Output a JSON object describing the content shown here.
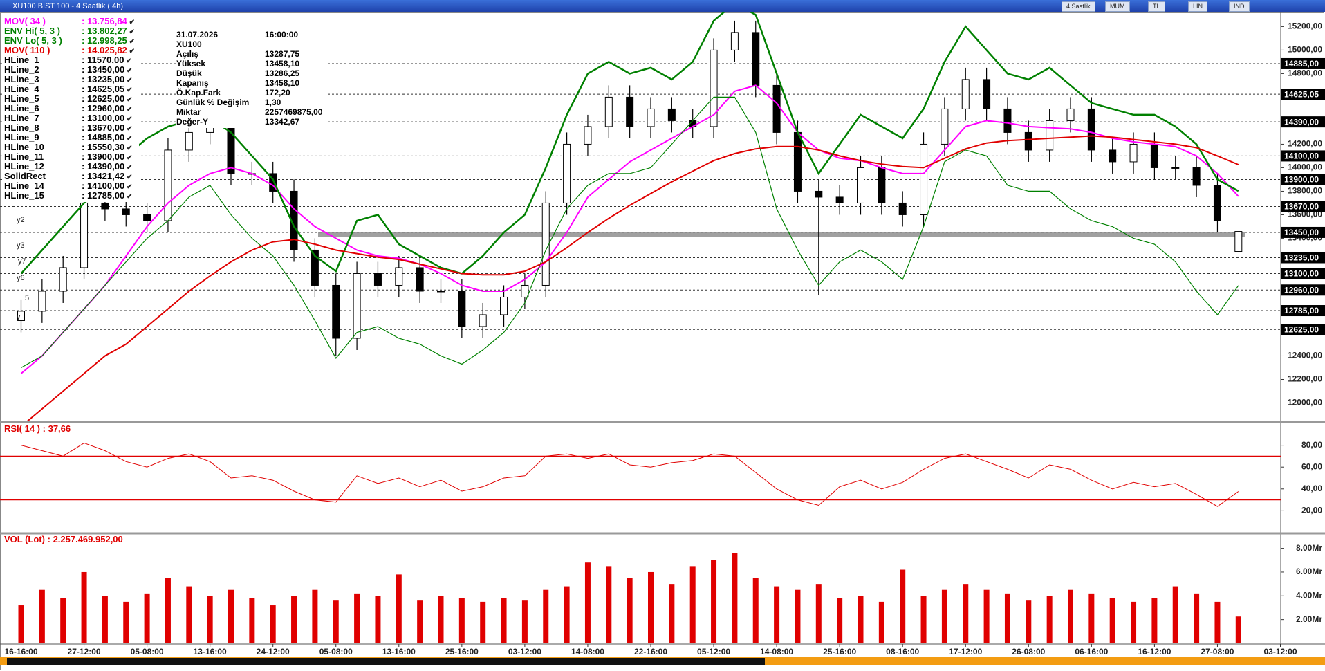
{
  "window_title": "XU100 BIST 100 - 4 Saatlik (.4h)",
  "toolbar": [
    "4 Saatlik",
    "MUM",
    "TL",
    "LIN",
    "IND"
  ],
  "info": {
    "date": "31.07.2026",
    "time": "16:00:00",
    "symbol": "XU100",
    "rows": [
      [
        "Açılış",
        "13287,75"
      ],
      [
        "Yüksek",
        "13458,10"
      ],
      [
        "Düşük",
        "13286,25"
      ],
      [
        "Kapanış",
        "13458,10"
      ],
      [
        "Ö.Kap.Fark",
        "172,20"
      ],
      [
        "Günlük % Değişim",
        "1,30"
      ],
      [
        "Miktar",
        "2257469875,00"
      ],
      [
        "Değer-Y",
        "13342,67"
      ]
    ]
  },
  "annotations": [
    "y2",
    "y3",
    "y7",
    "y6",
    "5",
    "y"
  ],
  "chart_data": [
    {
      "type": "candlestick",
      "categories": [
        "16-16:00",
        null,
        null,
        "27-12:00",
        null,
        null,
        "05-08:00",
        null,
        null,
        "13-16:00",
        null,
        null,
        "24-12:00",
        null,
        null,
        "05-08:00",
        null,
        null,
        "13-16:00",
        null,
        null,
        "25-16:00",
        null,
        null,
        "03-12:00",
        null,
        null,
        "14-08:00",
        null,
        null,
        "22-16:00",
        null,
        null,
        "05-12:00",
        null,
        null,
        "14-08:00",
        null,
        null,
        "25-16:00",
        null,
        null,
        "08-16:00",
        null,
        null,
        "17-12:00",
        null,
        null,
        "26-08:00",
        null,
        null,
        "06-16:00",
        null,
        null,
        "16-12:00",
        null,
        null,
        "27-08:00",
        null,
        null,
        "03-12:00"
      ],
      "open": [
        12700,
        12780,
        12950,
        13150,
        13700,
        13650,
        13600,
        13550,
        14150,
        14300,
        14350,
        13950,
        13950,
        13800,
        13300,
        13000,
        12550,
        13100,
        13000,
        13150,
        12950,
        12950,
        12650,
        12750,
        12900,
        13000,
        13700,
        14200,
        14350,
        14600,
        14350,
        14500,
        14400,
        14350,
        15000,
        15150,
        14700,
        14300,
        13800,
        13750,
        13700,
        14000,
        13700,
        13600,
        14200,
        14500,
        14750,
        14500,
        14300,
        14150,
        14400,
        14500,
        14150,
        14050,
        14200,
        14000,
        14000,
        13850,
        13287.75,
        null,
        null
      ],
      "high": [
        12880,
        13050,
        13250,
        13800,
        13800,
        13750,
        13700,
        14250,
        14400,
        14450,
        14450,
        14050,
        14050,
        13900,
        13400,
        13100,
        13200,
        13200,
        13250,
        13250,
        13050,
        13050,
        12850,
        13000,
        13100,
        13800,
        14300,
        14450,
        14700,
        14700,
        14600,
        14600,
        14500,
        15100,
        15250,
        15250,
        14800,
        14400,
        13900,
        13850,
        14100,
        14100,
        13800,
        14300,
        14600,
        14850,
        14850,
        14600,
        14400,
        14500,
        14600,
        14600,
        14250,
        14300,
        14300,
        14100,
        14100,
        13950,
        13458.1,
        null,
        null
      ],
      "low": [
        12600,
        12680,
        12850,
        13050,
        13550,
        13500,
        13450,
        13450,
        14050,
        14200,
        13850,
        13850,
        13700,
        13200,
        12900,
        12400,
        12450,
        12900,
        12900,
        12850,
        12850,
        12550,
        12550,
        12650,
        12800,
        12900,
        13600,
        14100,
        14250,
        14250,
        14250,
        14300,
        14250,
        14250,
        14900,
        14600,
        14200,
        13700,
        12920,
        13600,
        13600,
        13600,
        13500,
        13500,
        14100,
        14400,
        14400,
        14200,
        14050,
        14050,
        14300,
        14050,
        13950,
        13950,
        13900,
        13900,
        13750,
        13450,
        13286.25,
        null,
        null
      ],
      "close": [
        12780,
        12950,
        13150,
        13700,
        13650,
        13600,
        13550,
        14150,
        14300,
        14350,
        13950,
        13950,
        13800,
        13300,
        13000,
        12550,
        13100,
        13000,
        13150,
        12950,
        12950,
        12650,
        12750,
        12900,
        13000,
        13700,
        14200,
        14350,
        14600,
        14350,
        14500,
        14400,
        14350,
        15000,
        15150,
        14700,
        14300,
        13800,
        13750,
        13700,
        14000,
        13700,
        13600,
        14200,
        14500,
        14750,
        14500,
        14300,
        14150,
        14400,
        14500,
        14150,
        14050,
        14200,
        14000,
        14000,
        13850,
        13550,
        13458.1,
        null,
        null
      ],
      "up_color": "#ffffff",
      "down_color": "#000000",
      "series": [
        {
          "name": "MOV( 34 )",
          "color": "#ff00ff",
          "value_label": "13.756,84",
          "values": [
            12250,
            12400,
            12600,
            12800,
            13000,
            13250,
            13500,
            13700,
            13850,
            13950,
            14000,
            13950,
            13850,
            13650,
            13500,
            13400,
            13300,
            13250,
            13230,
            13180,
            13100,
            13000,
            12950,
            12950,
            13050,
            13200,
            13450,
            13750,
            13900,
            14050,
            14150,
            14250,
            14350,
            14450,
            14650,
            14700,
            14550,
            14300,
            14150,
            14080,
            14060,
            14000,
            13950,
            13950,
            14150,
            14350,
            14400,
            14380,
            14350,
            14340,
            14330,
            14300,
            14250,
            14220,
            14200,
            14180,
            14100,
            13950,
            13756.84,
            null,
            null
          ]
        },
        {
          "name": "ENV Hi( 5, 3 )",
          "color": "#008000",
          "value_label": "13.802,27",
          "values": [
            13100,
            13300,
            13500,
            13700,
            13900,
            14100,
            14250,
            14350,
            14400,
            14420,
            14300,
            14100,
            13900,
            13500,
            13250,
            13120,
            13550,
            13600,
            13350,
            13250,
            13150,
            13100,
            13250,
            13450,
            13600,
            14000,
            14450,
            14800,
            14900,
            14800,
            14850,
            14750,
            14900,
            15250,
            15400,
            15300,
            14800,
            14300,
            13950,
            14200,
            14450,
            14350,
            14250,
            14500,
            14900,
            15200,
            15000,
            14800,
            14750,
            14850,
            14700,
            14550,
            14500,
            14450,
            14450,
            14350,
            14200,
            13900,
            13802.27,
            null,
            null
          ]
        },
        {
          "name": "ENV Lo( 5, 3 )",
          "color": "#008000",
          "value_label": "12.998,25",
          "values": [
            12300,
            12400,
            12600,
            12800,
            13000,
            13200,
            13400,
            13550,
            13750,
            13850,
            13600,
            13400,
            13250,
            13000,
            12700,
            12380,
            12600,
            12650,
            12550,
            12500,
            12400,
            12330,
            12450,
            12600,
            12850,
            13300,
            13650,
            13850,
            13950,
            13950,
            14000,
            14200,
            14400,
            14600,
            14600,
            14300,
            13650,
            13300,
            13000,
            13200,
            13300,
            13200,
            13050,
            13500,
            14050,
            14150,
            14100,
            13850,
            13800,
            13800,
            13650,
            13550,
            13500,
            13400,
            13350,
            13200,
            12950,
            12750,
            12998.25,
            null,
            null
          ]
        },
        {
          "name": "MOV( 110 )",
          "color": "#e00000",
          "value_label": "14.025,82",
          "values": [
            11800,
            11950,
            12100,
            12250,
            12400,
            12500,
            12650,
            12800,
            12950,
            13080,
            13200,
            13300,
            13370,
            13390,
            13350,
            13300,
            13270,
            13240,
            13220,
            13180,
            13140,
            13100,
            13090,
            13090,
            13120,
            13200,
            13320,
            13450,
            13570,
            13680,
            13780,
            13880,
            13970,
            14060,
            14120,
            14160,
            14180,
            14180,
            14150,
            14100,
            14060,
            14030,
            14010,
            14000,
            14080,
            14160,
            14210,
            14230,
            14240,
            14250,
            14260,
            14270,
            14260,
            14240,
            14220,
            14200,
            14170,
            14100,
            14025.82,
            null,
            null
          ]
        }
      ],
      "overlays": [
        {
          "name": "HLine_1",
          "value": 11570,
          "label": "11570,00",
          "style": "dashed"
        },
        {
          "name": "HLine_2",
          "value": 13450,
          "label": "13450,00",
          "style": "dashed"
        },
        {
          "name": "HLine_3",
          "value": 13235,
          "label": "13235,00",
          "style": "dashed"
        },
        {
          "name": "HLine_4",
          "value": 14625,
          "label": "14625,05",
          "style": "dashed"
        },
        {
          "name": "HLine_5",
          "value": 12625,
          "label": "12625,00",
          "style": "dashed"
        },
        {
          "name": "HLine_6",
          "value": 12960,
          "label": "12960,00",
          "style": "dashed"
        },
        {
          "name": "HLine_7",
          "value": 13100,
          "label": "13100,00",
          "style": "dashed"
        },
        {
          "name": "HLine_8",
          "value": 13670,
          "label": "13670,00",
          "style": "dashed"
        },
        {
          "name": "HLine_9",
          "value": 14885,
          "label": "14885,00",
          "style": "dashed"
        },
        {
          "name": "HLine_10",
          "value": 15550.3,
          "label": "15550,30",
          "style": "dashed"
        },
        {
          "name": "HLine_11",
          "value": 13900,
          "label": "13900,00",
          "style": "dashed"
        },
        {
          "name": "HLine_12",
          "value": 14390,
          "label": "14390,00",
          "style": "dashed"
        },
        {
          "name": "SolidRect",
          "value": 13421.42,
          "label": "13421,42",
          "style": "rect"
        },
        {
          "name": "HLine_14",
          "value": 14100,
          "label": "14100,00",
          "style": "dashed"
        },
        {
          "name": "HLine_15",
          "value": 12785,
          "label": "12785,00",
          "style": "dashed"
        }
      ],
      "ylim": [
        11850,
        15320
      ],
      "yticks": [
        {
          "value": 12000,
          "label": "12000,00"
        },
        {
          "value": 12200,
          "label": "12200,00"
        },
        {
          "value": 12400,
          "label": "12400,00"
        },
        {
          "value": 13400,
          "label": "13400,00"
        },
        {
          "value": 13600,
          "label": "13600,00"
        },
        {
          "value": 13800,
          "label": "13800,00"
        },
        {
          "value": 14000,
          "label": "14000,00"
        },
        {
          "value": 14200,
          "label": "14200,00"
        },
        {
          "value": 14800,
          "label": "14800,00"
        },
        {
          "value": 15000,
          "label": "15000,00"
        },
        {
          "value": 15200,
          "label": "15200,00"
        }
      ]
    },
    {
      "type": "line",
      "title": "RSI( 14 )",
      "value_label": "37,66",
      "color": "#e00000",
      "values": [
        80,
        75,
        70,
        82,
        75,
        65,
        60,
        68,
        72,
        65,
        50,
        52,
        48,
        38,
        30,
        28,
        52,
        45,
        50,
        42,
        48,
        38,
        42,
        50,
        52,
        70,
        72,
        68,
        72,
        62,
        60,
        64,
        66,
        72,
        70,
        55,
        40,
        30,
        25,
        42,
        48,
        40,
        46,
        58,
        68,
        72,
        65,
        58,
        50,
        62,
        58,
        48,
        40,
        46,
        42,
        45,
        35,
        24,
        37.66,
        null,
        null
      ],
      "levels": [
        70,
        30
      ],
      "ylim": [
        0,
        100
      ],
      "yticks": [
        {
          "value": 20,
          "label": "20,00"
        },
        {
          "value": 40,
          "label": "40,00"
        },
        {
          "value": 60,
          "label": "60,00"
        },
        {
          "value": 80,
          "label": "80,00"
        }
      ]
    },
    {
      "type": "bar",
      "title": "VOL (Lot)",
      "value_label": "2.257.469.952,00",
      "color": "#e00000",
      "values": [
        3.2,
        4.5,
        3.8,
        6.0,
        4.0,
        3.5,
        4.2,
        5.5,
        4.8,
        4.0,
        4.5,
        3.8,
        3.2,
        4.0,
        4.5,
        3.6,
        4.2,
        4.0,
        5.8,
        3.6,
        4.0,
        3.8,
        3.5,
        3.8,
        3.6,
        4.5,
        4.8,
        6.8,
        6.5,
        5.5,
        6.0,
        5.0,
        6.5,
        7.0,
        7.6,
        5.5,
        4.8,
        4.5,
        5.0,
        3.8,
        4.0,
        3.5,
        6.2,
        4.0,
        4.5,
        5.0,
        4.5,
        4.2,
        3.6,
        4.0,
        4.5,
        4.2,
        3.8,
        3.5,
        3.8,
        4.8,
        4.2,
        3.5,
        2.257469952,
        null,
        null
      ],
      "ylim": [
        0,
        9.2
      ],
      "yticks": [
        {
          "value": 2,
          "label": "2.00Mr"
        },
        {
          "value": 4,
          "label": "4.00Mr"
        },
        {
          "value": 6,
          "label": "6.00Mr"
        },
        {
          "value": 8,
          "label": "8.00Mr"
        }
      ]
    }
  ]
}
